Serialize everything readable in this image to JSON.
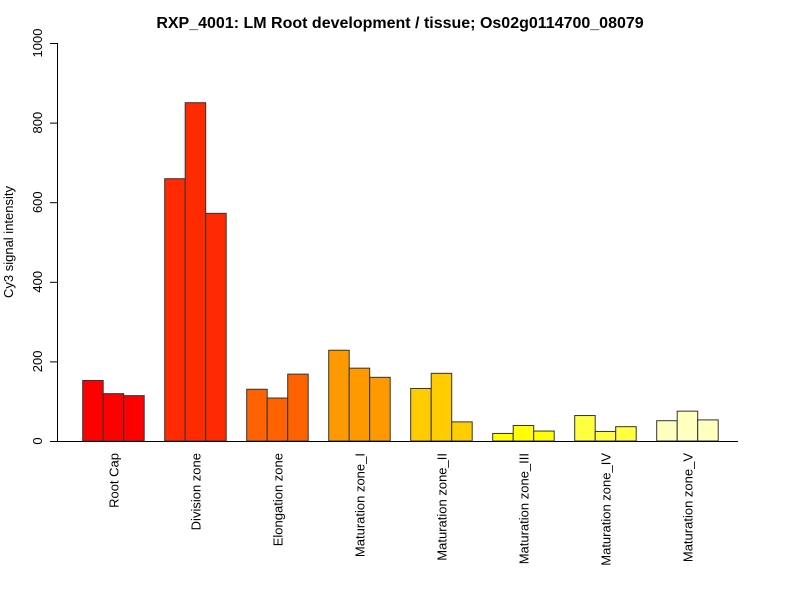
{
  "chart_data": {
    "type": "bar",
    "title": "RXP_4001: LM Root development / tissue; Os02g0114700_08079",
    "xlabel": "",
    "ylabel": "Cy3 signal intensity",
    "ylim": [
      0,
      1000
    ],
    "yticks": [
      0,
      200,
      400,
      600,
      800,
      1000
    ],
    "grid": false,
    "legend": "none",
    "categories": [
      "Root Cap",
      "Division zone",
      "Elongation zone",
      "Maturation zone_I",
      "Maturation zone_II",
      "Maturation zone_III",
      "Maturation zone_IV",
      "Maturation zone_V"
    ],
    "colors": [
      "#FF0000",
      "#FF2A00",
      "#FF6200",
      "#FF9900",
      "#FFCC00",
      "#FFFF00",
      "#FFFF40",
      "#FFFFBF"
    ],
    "replicates_per_category": 3,
    "values": [
      [
        152,
        119,
        114
      ],
      [
        659,
        850,
        572
      ],
      [
        130,
        108,
        168
      ],
      [
        228,
        183,
        160
      ],
      [
        132,
        170,
        48
      ],
      [
        19,
        39,
        25
      ],
      [
        64,
        24,
        36
      ],
      [
        51,
        75,
        53
      ]
    ]
  }
}
